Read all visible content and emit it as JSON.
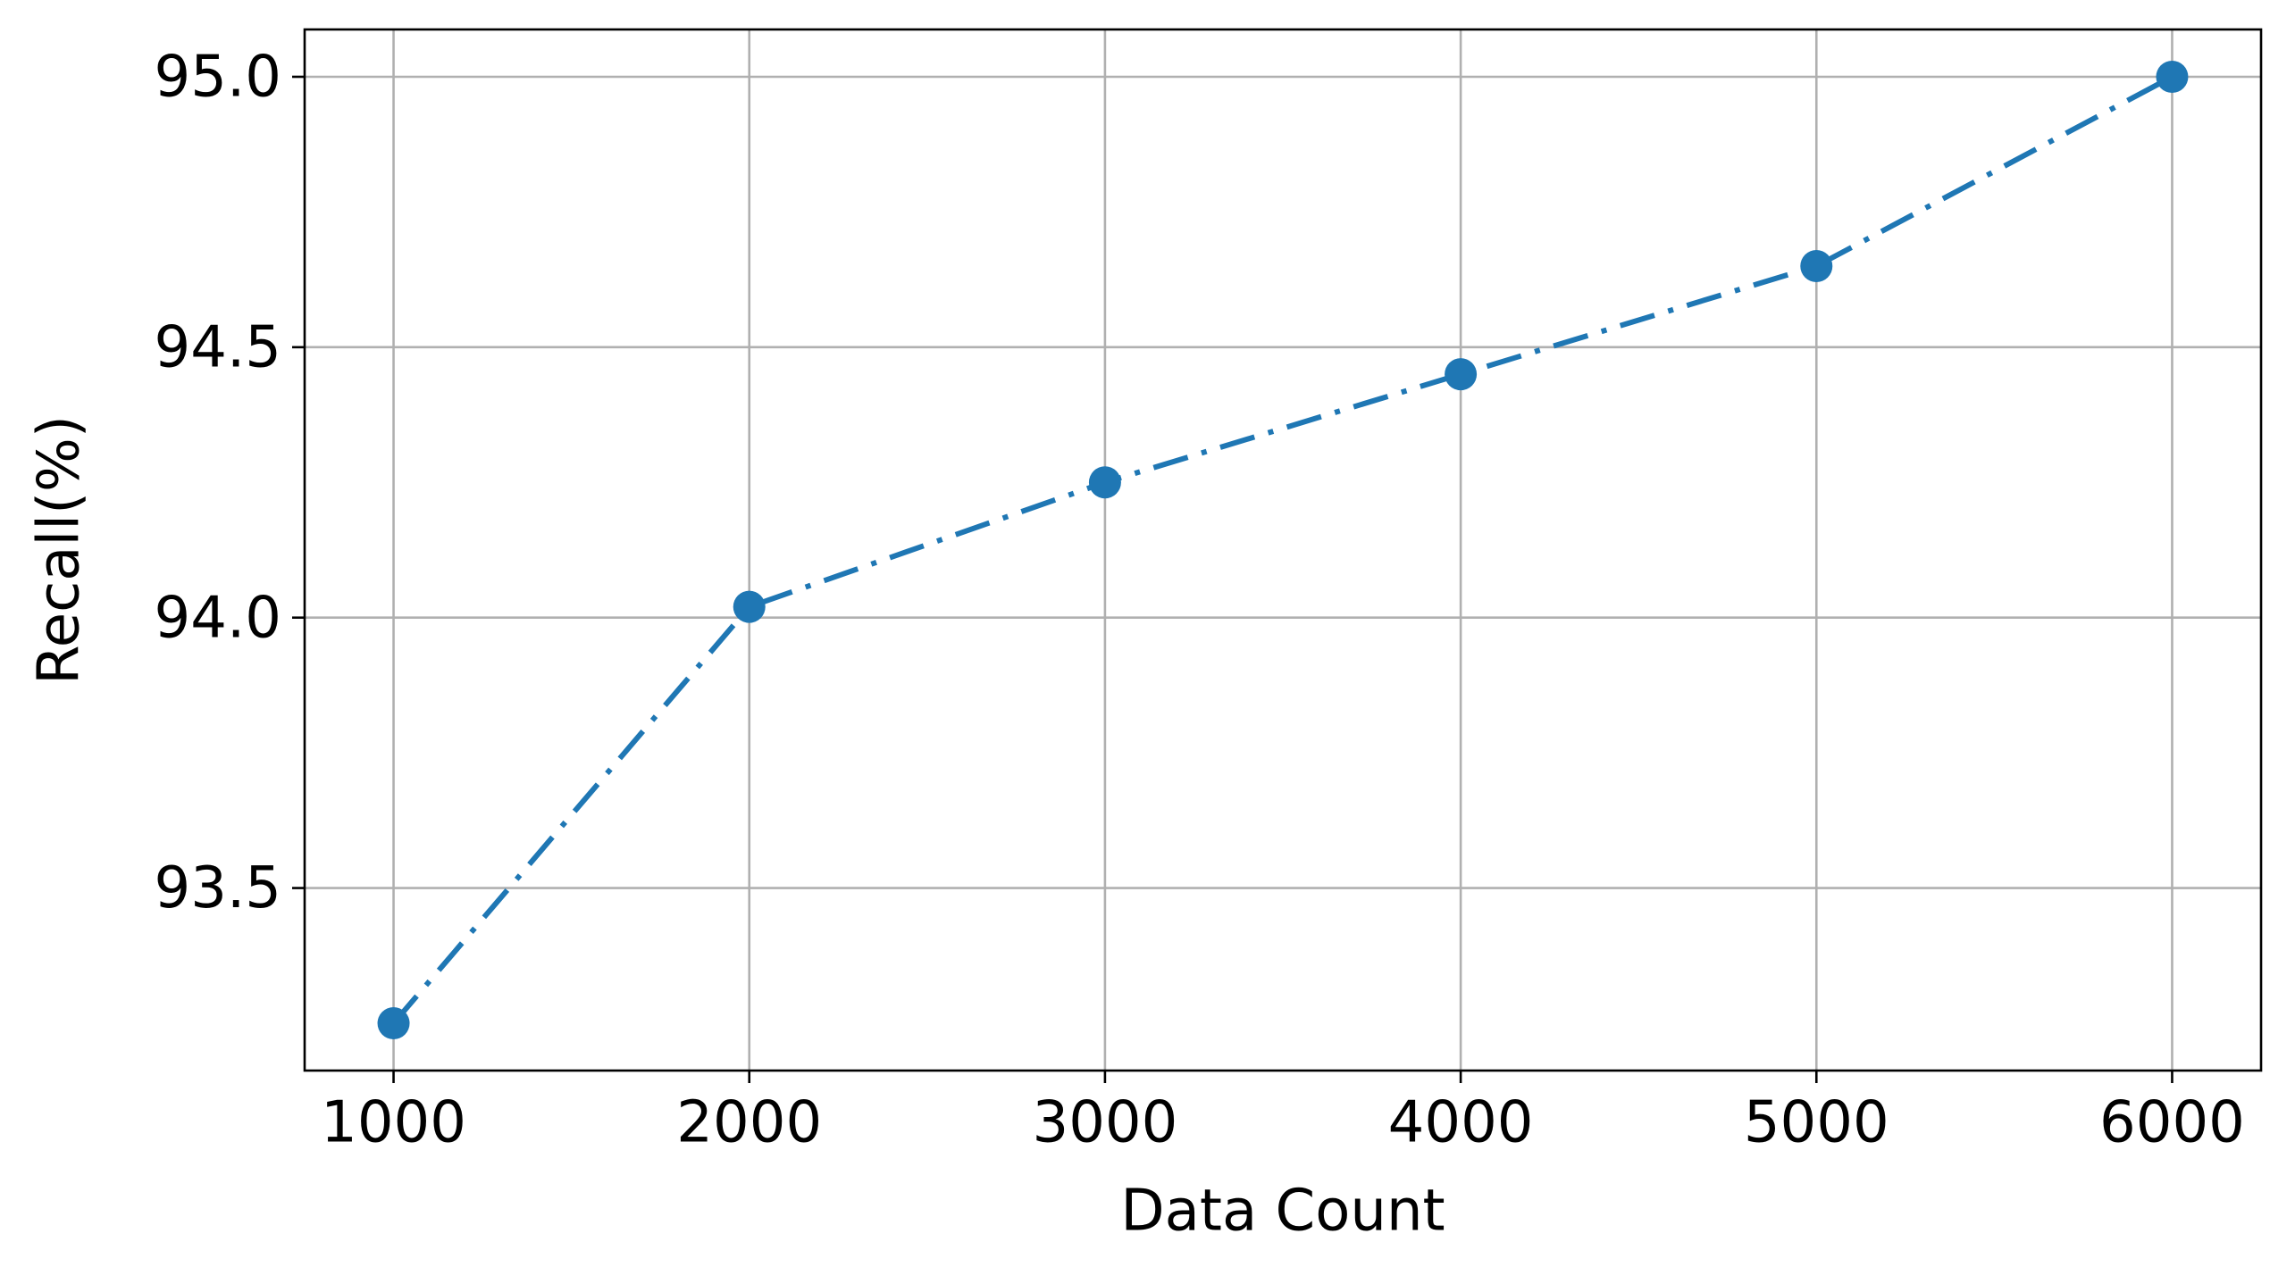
{
  "chart_data": {
    "type": "line",
    "x_label": "Data Count",
    "y_label": "Recall(%)",
    "x": [
      1000,
      2000,
      3000,
      4000,
      5000,
      6000
    ],
    "series": [
      {
        "color": "#1f77b4",
        "values": [
          93.25,
          94.02,
          94.25,
          94.45,
          94.65,
          95.0
        ]
      }
    ],
    "xlim": [
      750,
      6250
    ],
    "xticks": [
      1000,
      2000,
      3000,
      4000,
      5000,
      6000
    ],
    "ylim": [
      93.1625,
      95.0875
    ],
    "yticks": [
      93.5,
      {
        "value": 94.0,
        "label": "94.0"
      },
      94.5,
      {
        "value": 95.0,
        "label": "95.0"
      }
    ],
    "grid": true,
    "line_style": "dashdot",
    "marker": "circle"
  }
}
